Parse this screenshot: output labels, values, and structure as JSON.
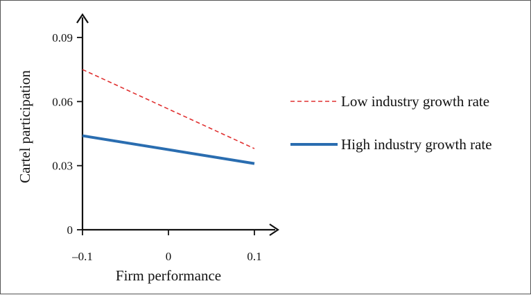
{
  "chart_data": {
    "type": "line",
    "title": "",
    "xlabel": "Firm performance",
    "ylabel": "Cartel participation",
    "x": [
      -0.1,
      0.1
    ],
    "x_ticks": [
      "–0.1",
      "0",
      "0.1"
    ],
    "x_tick_values": [
      -0.1,
      0,
      0.1
    ],
    "y_ticks": [
      "0",
      "0.03",
      "0.06",
      "0.09"
    ],
    "y_tick_values": [
      0,
      0.03,
      0.06,
      0.09
    ],
    "xlim": [
      -0.1,
      0.1
    ],
    "ylim": [
      0,
      0.09
    ],
    "grid": false,
    "legend_position": "right",
    "series": [
      {
        "name": "Low industry growth rate",
        "x": [
          -0.1,
          0.1
        ],
        "values": [
          0.075,
          0.038
        ],
        "color": "#e03030",
        "style": "dashed"
      },
      {
        "name": "High industry growth rate",
        "x": [
          -0.1,
          0.1
        ],
        "values": [
          0.044,
          0.031
        ],
        "color": "#2a6db0",
        "style": "solid"
      }
    ]
  }
}
